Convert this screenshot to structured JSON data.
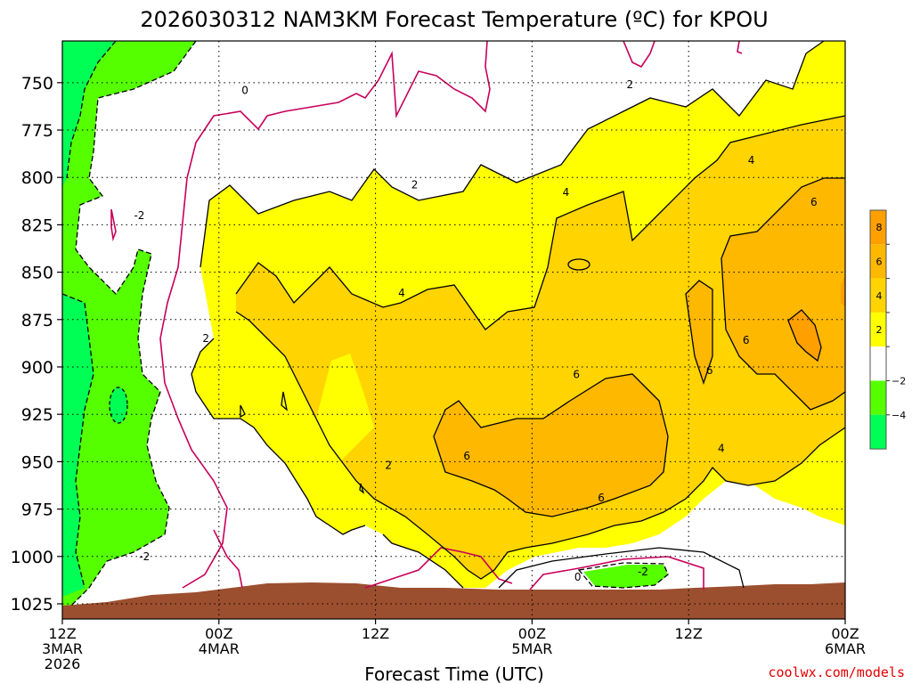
{
  "title": "2026030312 NAM3KM Forecast Temperature (ºC) for KPOU",
  "xlabel": "Forecast Time (UTC)",
  "credit": "coolwx.com/models",
  "colors": {
    "lt_neg4": "#00ff55",
    "neg4_to_neg2": "#55ff00",
    "neg2_to_2": "#ffffff",
    "2_to_4": "#ffff00",
    "4_to_6": "#ffd400",
    "6_to_8": "#ffb800",
    "gt_8": "#ff9f00",
    "ground": "#9c4f2e",
    "zero_line": "#c8005a",
    "contour": "#000000"
  },
  "chart_data": {
    "type": "heatmap",
    "title": "2026030312 NAM3KM Forecast Temperature (ºC) for KPOU",
    "xlabel": "Forecast Time (UTC)",
    "ylabel": "",
    "x_ticks": [
      {
        "hour": 0,
        "lines": [
          "12Z",
          "3MAR",
          "2026"
        ]
      },
      {
        "hour": 12,
        "lines": [
          "00Z",
          "4MAR"
        ]
      },
      {
        "hour": 24,
        "lines": [
          "12Z"
        ]
      },
      {
        "hour": 36,
        "lines": [
          "00Z",
          "5MAR"
        ]
      },
      {
        "hour": 48,
        "lines": [
          "12Z"
        ]
      },
      {
        "hour": 60,
        "lines": [
          "00Z",
          "6MAR"
        ]
      }
    ],
    "xlim": [
      0,
      60
    ],
    "y_ticks": [
      750,
      775,
      800,
      825,
      850,
      875,
      900,
      925,
      950,
      975,
      1000,
      1025
    ],
    "ylim": [
      728,
      1033
    ],
    "y_reversed": true,
    "grid": true,
    "legend": {
      "placement": "right",
      "levels": [
        -4,
        -2,
        2,
        4,
        6,
        8
      ],
      "labels": [
        "8",
        "6",
        "4",
        "2",
        "−2",
        "−4"
      ]
    },
    "contour_labels": [
      {
        "text": "0",
        "x": 14,
        "y": 754
      },
      {
        "text": "2",
        "x": 43.5,
        "y": 751
      },
      {
        "text": "-2",
        "x": 5.9,
        "y": 820
      },
      {
        "text": "2",
        "x": 27,
        "y": 804
      },
      {
        "text": "4",
        "x": 38.6,
        "y": 808
      },
      {
        "text": "4",
        "x": 52.8,
        "y": 791
      },
      {
        "text": "6",
        "x": 57.6,
        "y": 813
      },
      {
        "text": "4",
        "x": 26,
        "y": 861
      },
      {
        "text": "2",
        "x": 11,
        "y": 885
      },
      {
        "text": "6",
        "x": 39.4,
        "y": 904
      },
      {
        "text": "6",
        "x": 52.4,
        "y": 886
      },
      {
        "text": "6",
        "x": 49.6,
        "y": 902
      },
      {
        "text": "4",
        "x": 50.5,
        "y": 943
      },
      {
        "text": "6",
        "x": 31,
        "y": 947
      },
      {
        "text": "2",
        "x": 25,
        "y": 952
      },
      {
        "text": "6",
        "x": 41.3,
        "y": 969
      },
      {
        "text": "-2",
        "x": 6.3,
        "y": 1000
      },
      {
        "text": "0",
        "x": 39.5,
        "y": 1011
      },
      {
        "text": "-2",
        "x": 44.5,
        "y": 1008
      }
    ]
  }
}
